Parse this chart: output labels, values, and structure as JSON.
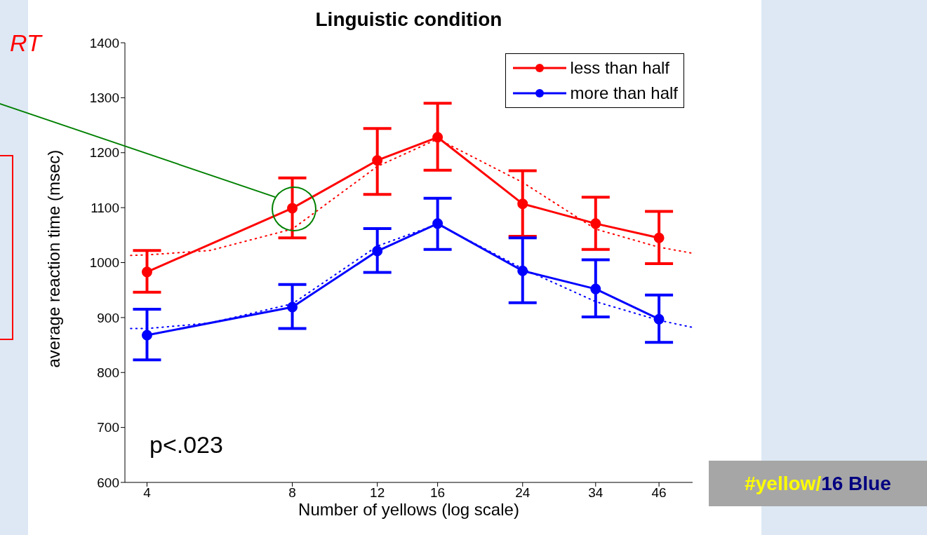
{
  "chart_data": {
    "type": "line",
    "title": "Linguistic condition",
    "xlabel": "Number of yellows (log scale)",
    "ylabel": "average reaction time (msec)",
    "annotations": [
      "p<.023",
      "RT",
      "#yellow/16 Blue"
    ],
    "log": "x",
    "xlim": [
      3.6,
      54
    ],
    "xticks": [
      4,
      8,
      12,
      16,
      24,
      34,
      46
    ],
    "ylim": [
      600,
      1400
    ],
    "yticks": [
      600,
      700,
      800,
      900,
      1000,
      1100,
      1200,
      1300,
      1400
    ],
    "grid": false,
    "legend": "top right",
    "marker": "circle",
    "line_style": "solid",
    "x": [
      4,
      8,
      12,
      16,
      24,
      34,
      46
    ],
    "series": [
      {
        "name": "less than half",
        "color": "#ff0000",
        "values": [
          983,
          1099,
          1186,
          1228,
          1107,
          1071,
          1045
        ],
        "errors": [
          [
            946,
            1022
          ],
          [
            1045,
            1154
          ],
          [
            1124,
            1244
          ],
          [
            1168,
            1290
          ],
          [
            1048,
            1167
          ],
          [
            1024,
            1119
          ],
          [
            998,
            1093
          ]
        ]
      },
      {
        "name": "more than half",
        "color": "#0000ff",
        "values": [
          868,
          919,
          1021,
          1071,
          985,
          952,
          897
        ],
        "errors": [
          [
            823,
            915
          ],
          [
            880,
            960
          ],
          [
            982,
            1062
          ],
          [
            1024,
            1117
          ],
          [
            927,
            1045
          ],
          [
            901,
            1005
          ],
          [
            855,
            941
          ]
        ]
      },
      {
        "type": "line",
        "color": "#ff0000",
        "marker": "none",
        "line_style": "dotted",
        "x": [
          3.7,
          4,
          5.4,
          8,
          12,
          16,
          24,
          34,
          46,
          54
        ],
        "values": [
          1013,
          1014,
          1022,
          1061,
          1175,
          1225,
          1146,
          1061,
          1028,
          1017
        ]
      },
      {
        "type": "line",
        "color": "#0000ff",
        "marker": "none",
        "line_style": "dotted",
        "x": [
          3.7,
          4,
          5.4,
          8,
          12,
          16,
          24,
          34,
          46,
          54
        ],
        "values": [
          880,
          880,
          890,
          925,
          1030,
          1070,
          989,
          929,
          895,
          882
        ]
      }
    ]
  }
}
